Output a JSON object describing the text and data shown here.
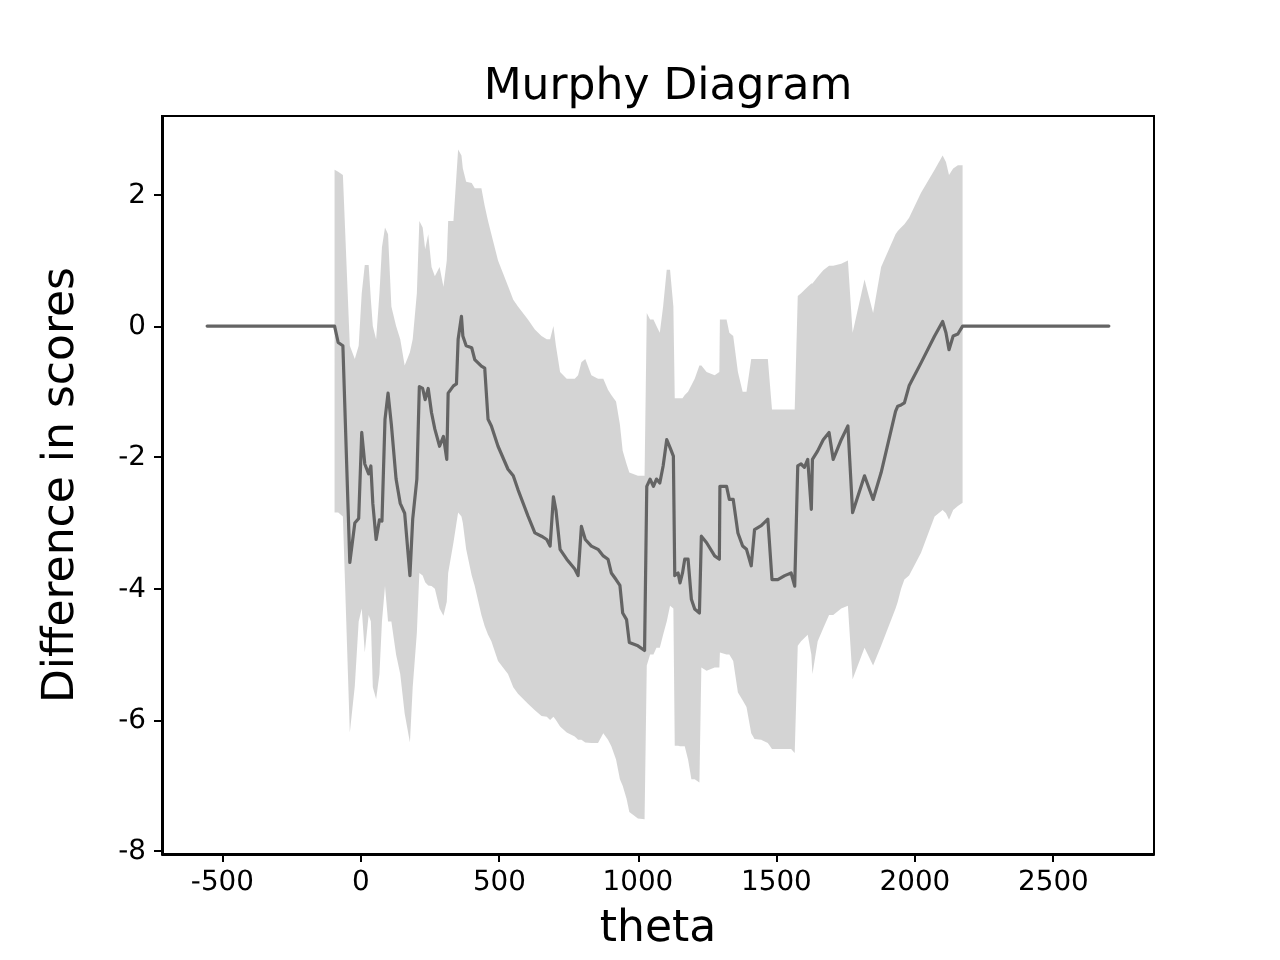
{
  "chart_data": {
    "type": "line",
    "title": "Murphy Diagram",
    "xlabel": "theta",
    "ylabel": "Difference in scores",
    "x": [
      -555,
      -95,
      -82,
      -65,
      -40,
      -22,
      -8,
      3,
      14,
      28,
      36,
      43,
      55,
      67,
      76,
      87,
      98,
      110,
      127,
      142,
      158,
      177,
      187,
      202,
      211,
      223,
      232,
      243,
      255,
      267,
      284,
      298,
      310,
      315,
      334,
      345,
      351,
      363,
      368,
      380,
      400,
      411,
      435,
      447,
      459,
      471,
      495,
      531,
      550,
      567,
      603,
      628,
      652,
      671,
      683,
      695,
      704,
      719,
      743,
      772,
      784,
      796,
      810,
      832,
      856,
      875,
      892,
      904,
      921,
      935,
      945,
      959,
      969,
      1000,
      1024,
      1032,
      1044,
      1056,
      1067,
      1079,
      1091,
      1104,
      1116,
      1128,
      1133,
      1145,
      1152,
      1161,
      1169,
      1181,
      1193,
      1205,
      1222,
      1229,
      1248,
      1277,
      1294,
      1296,
      1320,
      1330,
      1344,
      1361,
      1378,
      1392,
      1409,
      1421,
      1445,
      1469,
      1484,
      1505,
      1530,
      1553,
      1566,
      1577,
      1589,
      1601,
      1613,
      1626,
      1630,
      1649,
      1669,
      1690,
      1705,
      1734,
      1758,
      1775,
      1818,
      1849,
      1878,
      1930,
      1938,
      1950,
      1962,
      1979,
      2022,
      2071,
      2100,
      2112,
      2123,
      2138,
      2155,
      2172,
      2700
    ],
    "series": [
      {
        "color": "#646464",
        "values": [
          0,
          0,
          -0.25,
          -0.3,
          -3.6,
          -3.0,
          -2.93,
          -1.62,
          -2.1,
          -2.25,
          -2.13,
          -2.7,
          -3.25,
          -2.95,
          -2.97,
          -1.42,
          -1.02,
          -1.5,
          -2.33,
          -2.7,
          -2.85,
          -3.8,
          -2.94,
          -2.33,
          -0.92,
          -0.95,
          -1.12,
          -0.95,
          -1.32,
          -1.57,
          -1.83,
          -1.68,
          -2.03,
          -1.02,
          -0.91,
          -0.88,
          -0.2,
          0.15,
          -0.15,
          -0.3,
          -0.33,
          -0.51,
          -0.61,
          -0.64,
          -1.42,
          -1.52,
          -1.83,
          -2.18,
          -2.28,
          -2.49,
          -2.89,
          -3.15,
          -3.2,
          -3.25,
          -3.35,
          -2.6,
          -2.8,
          -3.4,
          -3.55,
          -3.7,
          -3.8,
          -3.05,
          -3.25,
          -3.35,
          -3.4,
          -3.5,
          -3.55,
          -3.76,
          -3.86,
          -3.95,
          -4.37,
          -4.47,
          -4.82,
          -4.87,
          -4.94,
          -2.44,
          -2.33,
          -2.44,
          -2.33,
          -2.39,
          -2.13,
          -1.73,
          -1.85,
          -1.98,
          -3.8,
          -3.76,
          -3.91,
          -3.76,
          -3.55,
          -3.55,
          -4.16,
          -4.31,
          -4.37,
          -3.2,
          -3.3,
          -3.5,
          -3.55,
          -2.44,
          -2.44,
          -2.64,
          -2.64,
          -3.15,
          -3.35,
          -3.4,
          -3.65,
          -3.1,
          -3.04,
          -2.94,
          -3.86,
          -3.86,
          -3.8,
          -3.76,
          -3.96,
          -2.13,
          -2.1,
          -2.15,
          -2.03,
          -2.79,
          -2.03,
          -1.9,
          -1.73,
          -1.62,
          -2.03,
          -1.73,
          -1.52,
          -2.84,
          -2.28,
          -2.64,
          -2.23,
          -1.3,
          -1.22,
          -1.2,
          -1.17,
          -0.91,
          -0.56,
          -0.15,
          0.07,
          -0.1,
          -0.36,
          -0.15,
          -0.12,
          0,
          0
        ],
        "upper": [
          null,
          2.38,
          2.35,
          2.3,
          -0.3,
          -0.5,
          -0.3,
          0.5,
          0.93,
          0.93,
          0.4,
          0.0,
          -0.2,
          0.5,
          1.2,
          1.5,
          1.4,
          0.3,
          0.0,
          -0.2,
          -0.6,
          -0.4,
          -0.2,
          0.5,
          1.6,
          1.5,
          1.17,
          1.4,
          0.9,
          0.76,
          0.9,
          0.6,
          1.0,
          1.6,
          1.6,
          2.3,
          2.69,
          2.6,
          2.4,
          2.2,
          2.18,
          2.1,
          2.1,
          1.83,
          1.6,
          1.4,
          1.0,
          0.61,
          0.4,
          0.3,
          0.1,
          -0.05,
          -0.15,
          -0.2,
          -0.2,
          0.0,
          -0.3,
          -0.7,
          -0.8,
          -0.8,
          -0.75,
          -0.55,
          -0.5,
          -0.75,
          -0.8,
          -0.8,
          -0.97,
          -1.05,
          -1.15,
          -1.5,
          -1.9,
          -2.1,
          -2.23,
          -2.28,
          -2.28,
          0.2,
          0.1,
          0.1,
          0.0,
          -0.1,
          0.3,
          0.86,
          0.86,
          0.3,
          -1.1,
          -1.1,
          -1.1,
          -1.1,
          -1.05,
          -1.0,
          -0.9,
          -0.8,
          -0.6,
          -0.6,
          -0.7,
          -0.75,
          -0.7,
          0.1,
          0.1,
          -0.1,
          -0.15,
          -0.7,
          -1.0,
          -1.0,
          -0.5,
          -0.5,
          -0.5,
          -0.5,
          -1.27,
          -1.27,
          -1.27,
          -1.27,
          -1.27,
          0.46,
          0.5,
          0.55,
          0.6,
          0.65,
          0.65,
          0.75,
          0.85,
          0.92,
          0.92,
          0.95,
          1.0,
          -0.1,
          0.71,
          0.2,
          0.9,
          1.4,
          1.45,
          1.5,
          1.55,
          1.65,
          2.03,
          2.38,
          2.6,
          2.5,
          2.3,
          2.4,
          2.45,
          2.45,
          null
        ],
        "lower": [
          null,
          -2.84,
          -2.84,
          -2.9,
          -6.19,
          -5.48,
          -4.5,
          -4.3,
          -4.97,
          -4.4,
          -4.5,
          -5.5,
          -5.68,
          -5.3,
          -4.5,
          -3.96,
          -4.5,
          -4.5,
          -5.0,
          -5.3,
          -5.9,
          -6.34,
          -5.5,
          -4.67,
          -3.76,
          -3.8,
          -3.9,
          -3.95,
          -3.96,
          -4.0,
          -4.3,
          -4.41,
          -4.2,
          -3.76,
          -3.3,
          -3.0,
          -2.84,
          -2.9,
          -3.0,
          -3.4,
          -3.8,
          -3.96,
          -4.4,
          -4.57,
          -4.7,
          -4.8,
          -5.1,
          -5.3,
          -5.5,
          -5.6,
          -5.75,
          -5.85,
          -5.94,
          -5.95,
          -6.0,
          -5.95,
          -6.0,
          -6.1,
          -6.19,
          -6.25,
          -6.3,
          -6.3,
          -6.34,
          -6.35,
          -6.35,
          -6.2,
          -6.3,
          -6.4,
          -6.6,
          -6.9,
          -7.0,
          -7.2,
          -7.4,
          -7.5,
          -7.51,
          -5.17,
          -5.0,
          -5.0,
          -4.9,
          -4.9,
          -4.7,
          -4.5,
          -4.26,
          -4.3,
          -6.39,
          -6.39,
          -6.4,
          -6.4,
          -6.4,
          -6.6,
          -6.9,
          -6.9,
          -6.95,
          -5.2,
          -5.25,
          -5.2,
          -5.2,
          -4.97,
          -5.0,
          -5.0,
          -5.1,
          -5.58,
          -5.7,
          -5.8,
          -6.2,
          -6.29,
          -6.3,
          -6.35,
          -6.44,
          -6.44,
          -6.44,
          -6.44,
          -6.5,
          -4.87,
          -4.8,
          -4.75,
          -4.7,
          -5.0,
          -5.3,
          -4.8,
          -4.6,
          -4.4,
          -4.4,
          -4.3,
          -4.26,
          -5.38,
          -4.9,
          -5.17,
          -4.87,
          -4.3,
          -4.2,
          -4.0,
          -3.86,
          -3.8,
          -3.45,
          -2.9,
          -2.8,
          -2.85,
          -2.95,
          -2.8,
          -2.74,
          -2.69,
          null
        ]
      }
    ],
    "xlim": [
      -718,
      2863
    ],
    "ylim": [
      -8.04,
      3.2
    ],
    "xticks": [
      -500,
      0,
      500,
      1000,
      1500,
      2000,
      2500
    ],
    "yticks": [
      -8,
      -6,
      -4,
      -2,
      0,
      2
    ]
  }
}
